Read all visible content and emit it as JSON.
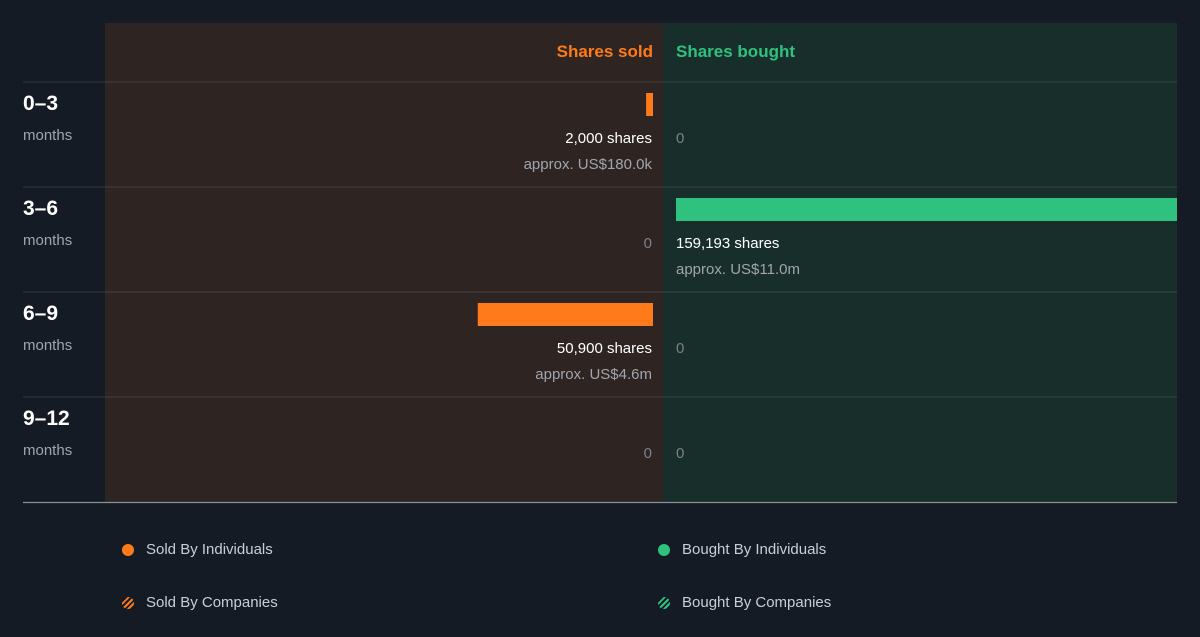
{
  "colors": {
    "sold": "#ff7a1a",
    "bought": "#2ec27e",
    "sold_bg": "#2e2523",
    "bought_bg": "#182e2b",
    "background": "#151b24",
    "muted": "#7b818a",
    "label": "#ffffff",
    "sublabel": "#a0a5ad"
  },
  "chart_data": {
    "type": "bar",
    "orientation": "horizontal-diverging",
    "columns": {
      "sold_label": "Shares sold",
      "bought_label": "Shares bought"
    },
    "xlim": [
      0,
      159193
    ],
    "rows": [
      {
        "period": "0–3",
        "unit": "months",
        "sold": 2000,
        "sold_label": "2,000 shares",
        "sold_value": "approx. US$180.0k",
        "bought": 0,
        "bought_label": "0",
        "bought_value": ""
      },
      {
        "period": "3–6",
        "unit": "months",
        "sold": 0,
        "sold_label": "0",
        "sold_value": "",
        "bought": 159193,
        "bought_label": "159,193 shares",
        "bought_value": "approx. US$11.0m"
      },
      {
        "period": "6–9",
        "unit": "months",
        "sold": 50900,
        "sold_label": "50,900 shares",
        "sold_value": "approx. US$4.6m",
        "bought": 0,
        "bought_label": "0",
        "bought_value": ""
      },
      {
        "period": "9–12",
        "unit": "months",
        "sold": 0,
        "sold_label": "0",
        "sold_value": "",
        "bought": 0,
        "bought_label": "0",
        "bought_value": ""
      }
    ]
  },
  "legend": {
    "sold_individuals": "Sold By Individuals",
    "bought_individuals": "Bought By Individuals",
    "sold_companies": "Sold By Companies",
    "bought_companies": "Bought By Companies"
  }
}
